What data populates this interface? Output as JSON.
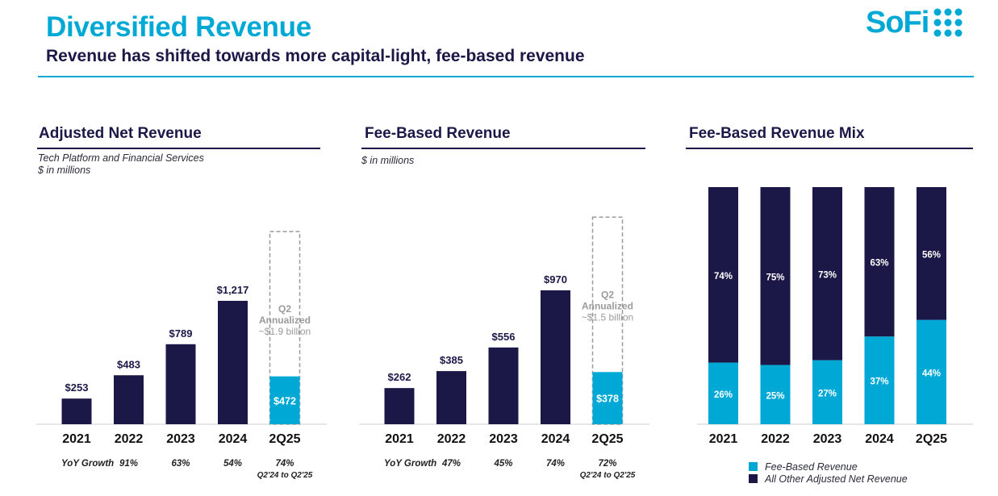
{
  "header": {
    "title": "Diversified Revenue",
    "subtitle": "Revenue has shifted towards more capital-light, fee-based revenue",
    "logo_text": "SoFi"
  },
  "colors": {
    "navy": "#1b1747",
    "teal": "#00a8d6",
    "gray": "#9b9b9b"
  },
  "panels": {
    "adjusted": {
      "title": "Adjusted Net Revenue",
      "note1": "Tech Platform and Financial Services",
      "note2": "$ in millions"
    },
    "fee": {
      "title": "Fee-Based Revenue",
      "note1": "$ in millions"
    },
    "mix": {
      "title": "Fee-Based Revenue Mix"
    }
  },
  "legend": {
    "fee": "Fee-Based Revenue",
    "other": "All Other Adjusted Net Revenue"
  },
  "chart_data": [
    {
      "type": "bar",
      "title": "Adjusted Net Revenue",
      "categories": [
        "2021",
        "2022",
        "2023",
        "2024",
        "2Q25"
      ],
      "values": [
        253,
        483,
        789,
        1217,
        472
      ],
      "data_labels": [
        "$253",
        "$483",
        "$789",
        "$1,217",
        "$472"
      ],
      "annualized": {
        "value": 1900,
        "label_lines": [
          "Q2",
          "Annualized",
          "~$1.9 billion"
        ]
      },
      "growth_label": "YoY Growth",
      "growth": [
        "91%",
        "63%",
        "54%",
        "74%"
      ],
      "growth_note": "Q2'24 to Q2'25",
      "ylim": [
        0,
        2000
      ]
    },
    {
      "type": "bar",
      "title": "Fee-Based Revenue",
      "categories": [
        "2021",
        "2022",
        "2023",
        "2024",
        "2Q25"
      ],
      "values": [
        262,
        385,
        556,
        970,
        378
      ],
      "data_labels": [
        "$262",
        "$385",
        "$556",
        "$970",
        "$378"
      ],
      "annualized": {
        "value": 1500,
        "label_lines": [
          "Q2",
          "Annualized",
          "~$1.5 billion"
        ]
      },
      "growth_label": "YoY Growth",
      "growth": [
        "47%",
        "45%",
        "74%",
        "72%"
      ],
      "growth_note": "Q2'24 to Q2'25",
      "ylim": [
        0,
        1600
      ]
    },
    {
      "type": "bar",
      "stacked": true,
      "title": "Fee-Based Revenue Mix",
      "categories": [
        "2021",
        "2022",
        "2023",
        "2024",
        "2Q25"
      ],
      "series": [
        {
          "name": "Fee-Based Revenue",
          "values": [
            26,
            25,
            27,
            37,
            44
          ]
        },
        {
          "name": "All Other Adjusted Net Revenue",
          "values": [
            74,
            75,
            73,
            63,
            56
          ]
        }
      ],
      "ylim": [
        0,
        100
      ]
    }
  ]
}
